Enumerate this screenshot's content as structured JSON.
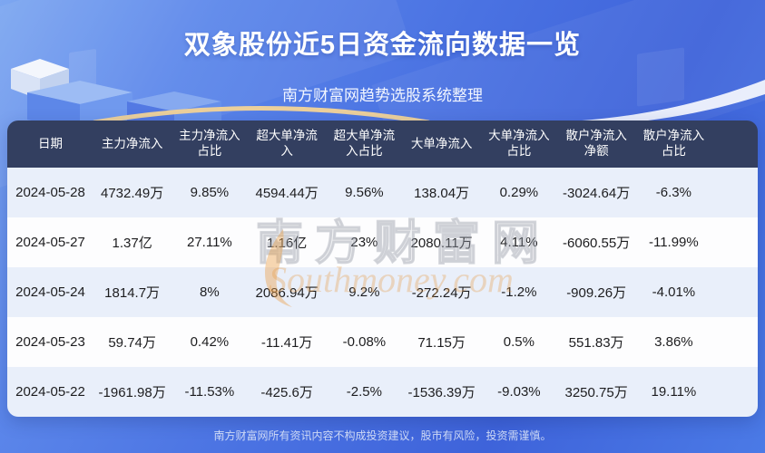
{
  "page": {
    "subtitle": "南方财富网趋势选股系统整理",
    "footer_disclaimer": "南方财富网所有资讯内容不构成投资建议，股市有风险，投资需谨慎。"
  },
  "watermark": {
    "cn": "南方财富网",
    "en": "Southmoney.com"
  },
  "chart_data": {
    "type": "table",
    "title": "双象股份近5日资金流向数据一览",
    "columns": [
      "日期",
      "主力净流入",
      "主力净流入占比",
      "超大单净流入",
      "超大单净流入占比",
      "大单净流入",
      "大单净流入占比",
      "散户净流入净额",
      "散户净流入占比"
    ],
    "rows": [
      [
        "2024-05-28",
        "4732.49万",
        "9.85%",
        "4594.44万",
        "9.56%",
        "138.04万",
        "0.29%",
        "-3024.64万",
        "-6.3%"
      ],
      [
        "2024-05-27",
        "1.37亿",
        "27.11%",
        "1.16亿",
        "23%",
        "2080.11万",
        "4.11%",
        "-6060.55万",
        "-11.99%"
      ],
      [
        "2024-05-24",
        "1814.7万",
        "8%",
        "2086.94万",
        "9.2%",
        "-272.24万",
        "-1.2%",
        "-909.26万",
        "-4.01%"
      ],
      [
        "2024-05-23",
        "59.74万",
        "0.42%",
        "-11.41万",
        "-0.08%",
        "71.15万",
        "0.5%",
        "551.83万",
        "3.86%"
      ],
      [
        "2024-05-22",
        "-1961.98万",
        "-11.53%",
        "-425.6万",
        "-2.5%",
        "-1536.39万",
        "-9.03%",
        "3250.75万",
        "19.11%"
      ]
    ]
  },
  "colors": {
    "header_bg": "#333f60",
    "row_bg": "#fdfdfe",
    "row_alt_bg": "#e9effa",
    "page_blue": "#4a72e2",
    "gold_arc": "#ecd09b",
    "watermark_orange": "#e79f4a"
  }
}
